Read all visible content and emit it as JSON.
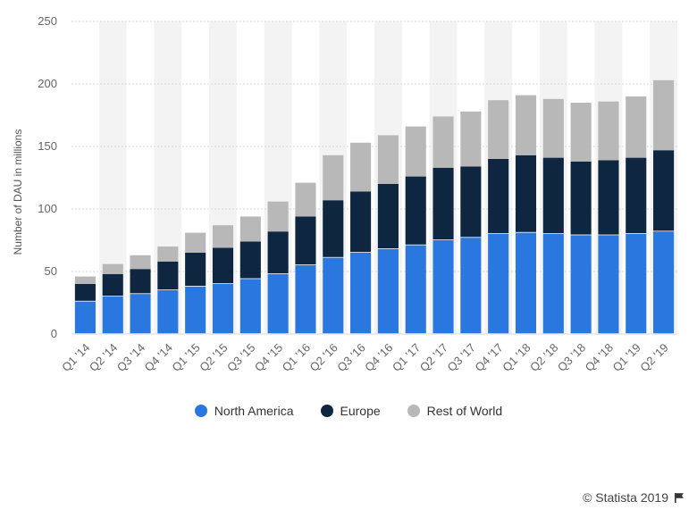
{
  "chart_data": {
    "type": "bar",
    "stacked": true,
    "categories": [
      "Q1 '14",
      "Q2 '14",
      "Q3 '14",
      "Q4 '14",
      "Q1 '15",
      "Q2 '15",
      "Q3 '15",
      "Q4 '15",
      "Q1 '16",
      "Q2 '16",
      "Q3 '16",
      "Q4 '16",
      "Q1 '17",
      "Q2 '17",
      "Q3 '17",
      "Q4 '17",
      "Q1 '18",
      "Q2 '18",
      "Q3 '18",
      "Q4 '18",
      "Q1 '19",
      "Q2 '19"
    ],
    "series": [
      {
        "name": "North America",
        "color": "#2a77e0",
        "values": [
          26,
          30,
          32,
          35,
          38,
          40,
          44,
          48,
          55,
          61,
          65,
          68,
          71,
          75,
          77,
          80,
          81,
          80,
          79,
          79,
          80,
          82
        ]
      },
      {
        "name": "Europe",
        "color": "#0f2641",
        "values": [
          14,
          18,
          20,
          23,
          27,
          29,
          30,
          34,
          39,
          46,
          49,
          52,
          55,
          58,
          57,
          60,
          62,
          61,
          59,
          60,
          61,
          65
        ]
      },
      {
        "name": "Rest of World",
        "color": "#b8b8b8",
        "values": [
          6,
          8,
          11,
          12,
          16,
          18,
          20,
          24,
          27,
          36,
          39,
          39,
          40,
          41,
          44,
          47,
          48,
          47,
          47,
          47,
          49,
          56
        ]
      }
    ],
    "ylabel": "Number of DAU in millions",
    "ylim": [
      0,
      250
    ],
    "yticks": [
      0,
      50,
      100,
      150,
      200,
      250
    ],
    "grid": true,
    "legend_position": "bottom"
  },
  "credit": "© Statista 2019"
}
